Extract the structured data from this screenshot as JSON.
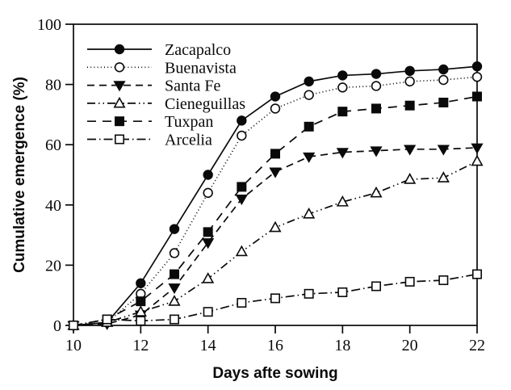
{
  "figure": {
    "background": "#ffffff",
    "ink_color": "#0a0a0a"
  },
  "chart_data": {
    "type": "line",
    "title": "",
    "xlabel": "Days afte sowing",
    "ylabel": "Cumulative emergence (%)",
    "xlim": [
      10,
      22
    ],
    "ylim": [
      0,
      100
    ],
    "xticks": [
      10,
      12,
      14,
      16,
      18,
      20,
      22
    ],
    "yticks": [
      0,
      20,
      40,
      60,
      80,
      100
    ],
    "grid": false,
    "frame": "full-box",
    "legend_position": "top-left-inside",
    "x": [
      10,
      11,
      12,
      13,
      14,
      15,
      16,
      17,
      18,
      19,
      20,
      21,
      22
    ],
    "series": [
      {
        "name": "Zacapalco",
        "marker": "circle-filled",
        "line": "solid",
        "values": [
          0,
          1,
          14,
          32,
          50,
          68,
          76,
          81,
          83,
          83.5,
          84.5,
          85,
          86
        ]
      },
      {
        "name": "Buenavista",
        "marker": "circle-open",
        "line": "dotted",
        "values": [
          0,
          1,
          10.5,
          24,
          44,
          63,
          72,
          76.5,
          79,
          79.5,
          81,
          81.5,
          82.5
        ]
      },
      {
        "name": "Santa Fe",
        "marker": "triangle-down-filled",
        "line": "dashed",
        "values": [
          0,
          0.5,
          3.5,
          12.5,
          27.5,
          42,
          51,
          56,
          57.5,
          58,
          58.5,
          58.5,
          59
        ]
      },
      {
        "name": "Cieneguillas",
        "marker": "triangle-up-open",
        "line": "dash-dot-dot",
        "values": [
          0,
          1,
          4.5,
          8,
          15.5,
          24.5,
          32.5,
          37,
          41,
          44,
          48.5,
          49,
          54.5
        ]
      },
      {
        "name": "Tuxpan",
        "marker": "square-filled",
        "line": "long-dash",
        "values": [
          0,
          2,
          8,
          17,
          31,
          46,
          57,
          66,
          71,
          72,
          73,
          74,
          76
        ]
      },
      {
        "name": "Arcelia",
        "marker": "square-open",
        "line": "dash-dot",
        "values": [
          0,
          2,
          1.5,
          2,
          4.5,
          7.5,
          9,
          10.5,
          11,
          13,
          14.5,
          15,
          17
        ]
      }
    ]
  }
}
